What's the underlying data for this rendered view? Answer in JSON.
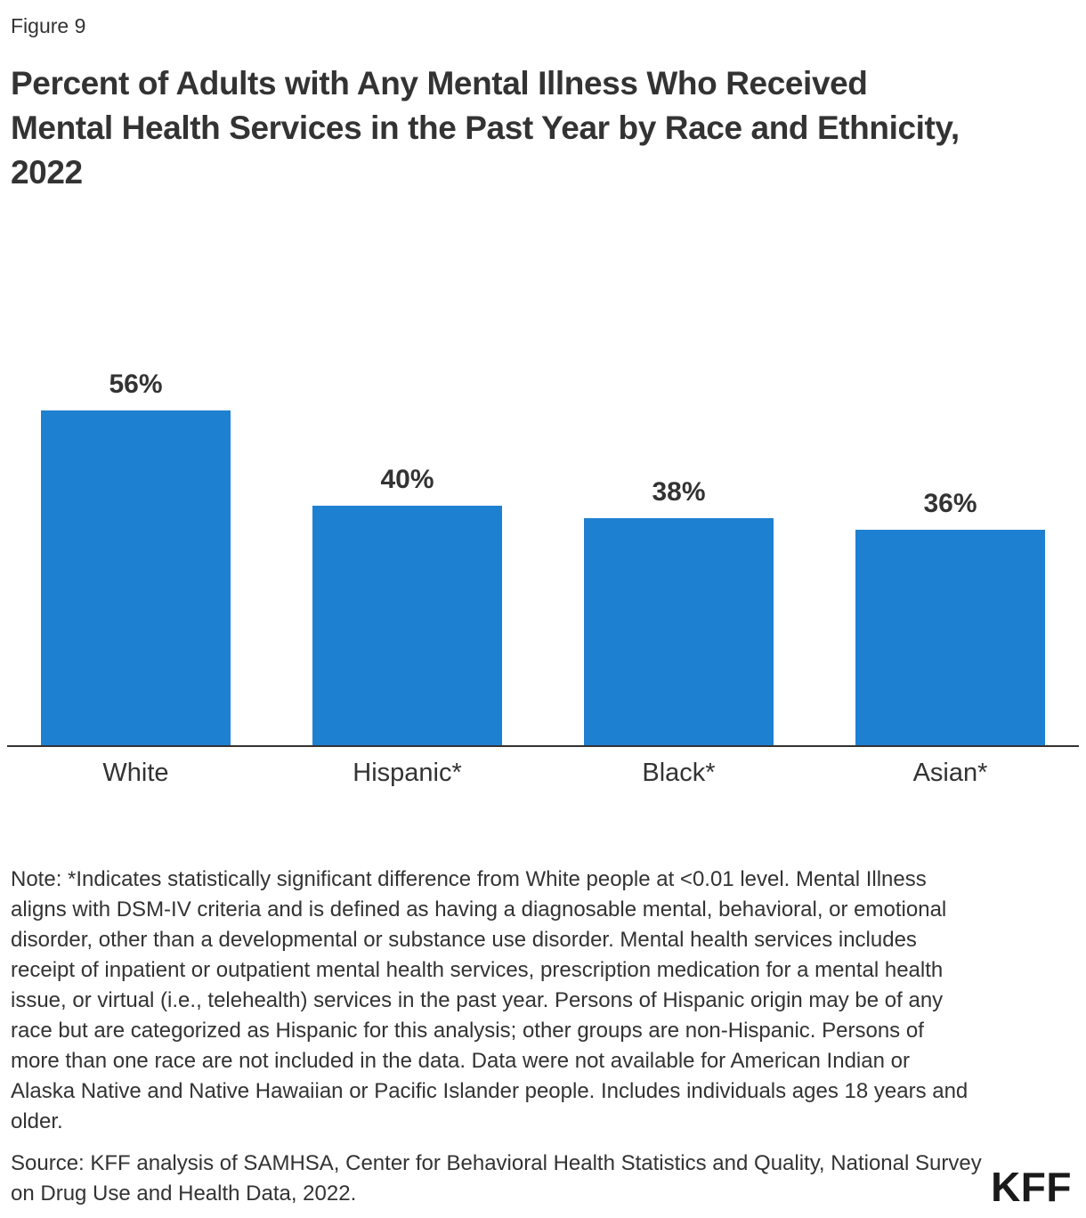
{
  "figure_label": "Figure 9",
  "title": "Percent of Adults with Any Mental Illness Who Received Mental Health Services in the Past Year by Race and Ethnicity, 2022",
  "title_lines": [
    "Percent of Adults with Any Mental Illness Who Received",
    "Mental Health Services in the Past Year by Race and Ethnicity,",
    "2022"
  ],
  "chart_data": {
    "type": "bar",
    "title": "Percent of Adults with Any Mental Illness Who Received Mental Health Services in the Past Year by Race and Ethnicity, 2022",
    "categories": [
      "White",
      "Hispanic*",
      "Black*",
      "Asian*"
    ],
    "values": [
      56,
      40,
      38,
      36
    ],
    "value_labels": [
      "56%",
      "40%",
      "38%",
      "36%"
    ],
    "xlabel": "",
    "ylabel": "",
    "ylim": [
      0,
      63
    ],
    "grid": false,
    "legend": false,
    "bar_color": "#1e80d1",
    "axis_color": "#333333"
  },
  "note": "Note: *Indicates statistically significant difference from White people at <0.01 level. Mental Illness aligns with DSM-IV criteria and is defined as having a diagnosable mental, behavioral, or emotional disorder, other than a developmental or substance use disorder. Mental health services includes receipt of inpatient or outpatient mental health services, prescription medication for a mental health issue, or virtual (i.e., telehealth) services in the past year. Persons of Hispanic origin may be of any race but are categorized as Hispanic for this analysis; other groups are non-Hispanic. Persons of more than one race are not included in the data. Data were not available for American Indian or Alaska Native and Native Hawaiian or Pacific Islander people. Includes individuals ages 18 years and older.",
  "source": "Source: KFF analysis of SAMHSA, Center for Behavioral Health Statistics and Quality, National Survey on Drug Use and Health Data, 2022.",
  "logo_text": "KFF",
  "colors": {
    "text": "#333333",
    "bar": "#1e80d1",
    "axis": "#333333",
    "logo": "#1a1a1a"
  }
}
